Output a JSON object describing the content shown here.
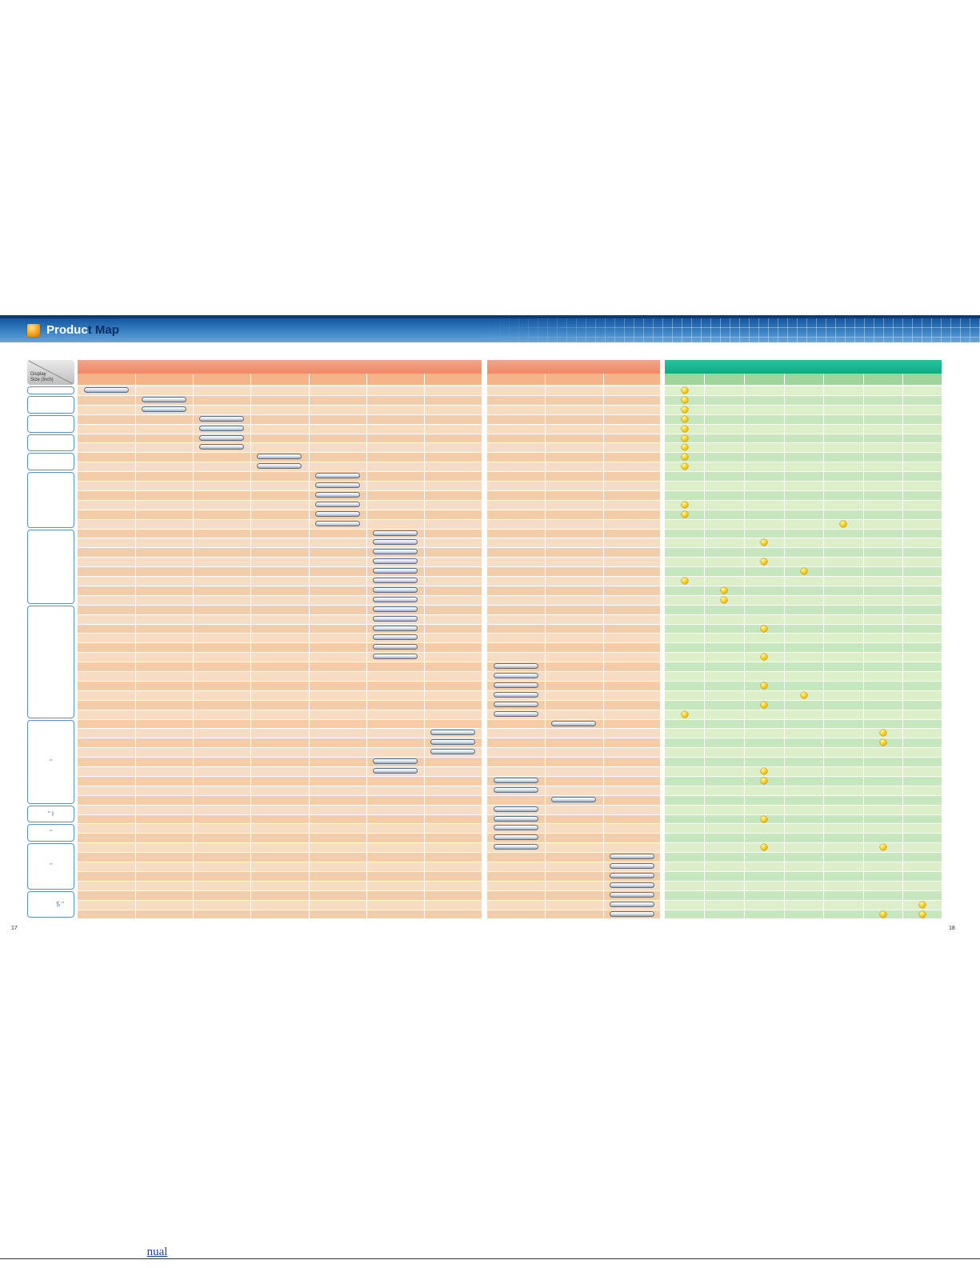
{
  "header": {
    "title_part1": "Produc",
    "title_part2": "t Map"
  },
  "table": {
    "corner_line1": "Display",
    "corner_line2": "Size (Inch)",
    "size_boxes": [
      {
        "rows": [
          0,
          0
        ],
        "text": ""
      },
      {
        "rows": [
          1,
          2
        ],
        "text": ""
      },
      {
        "rows": [
          3,
          4
        ],
        "text": ""
      },
      {
        "rows": [
          5,
          6
        ],
        "text": ""
      },
      {
        "rows": [
          7,
          8
        ],
        "text": ""
      },
      {
        "rows": [
          9,
          14
        ],
        "text": ""
      },
      {
        "rows": [
          15,
          22
        ],
        "text": ""
      },
      {
        "rows": [
          23,
          34
        ],
        "text": ""
      },
      {
        "rows": [
          35,
          43
        ],
        "text": "\""
      },
      {
        "rows": [
          44,
          45
        ],
        "text": "\"  I"
      },
      {
        "rows": [
          46,
          47
        ],
        "text": "\""
      },
      {
        "rows": [
          48,
          52
        ],
        "text": "\""
      },
      {
        "rows": [
          53,
          55
        ],
        "text": "5  \""
      }
    ],
    "row_count": 56,
    "pills": [
      [
        0,
        0
      ],
      [
        1,
        1
      ],
      [
        2,
        1
      ],
      [
        3,
        2
      ],
      [
        4,
        2
      ],
      [
        5,
        2
      ],
      [
        6,
        2
      ],
      [
        7,
        3
      ],
      [
        8,
        3
      ],
      [
        9,
        4
      ],
      [
        10,
        4
      ],
      [
        11,
        4
      ],
      [
        12,
        4
      ],
      [
        13,
        4
      ],
      [
        14,
        4
      ],
      [
        15,
        5
      ],
      [
        16,
        5
      ],
      [
        17,
        5
      ],
      [
        18,
        5
      ],
      [
        19,
        5
      ],
      [
        20,
        5
      ],
      [
        21,
        5
      ],
      [
        22,
        5
      ],
      [
        23,
        5
      ],
      [
        24,
        5
      ],
      [
        25,
        5
      ],
      [
        26,
        5
      ],
      [
        27,
        5
      ],
      [
        28,
        5
      ],
      [
        29,
        7
      ],
      [
        30,
        7
      ],
      [
        31,
        7
      ],
      [
        32,
        7
      ],
      [
        33,
        7
      ],
      [
        34,
        7
      ],
      [
        35,
        8
      ],
      [
        36,
        6
      ],
      [
        37,
        6
      ],
      [
        38,
        6
      ],
      [
        39,
        5
      ],
      [
        40,
        5
      ],
      [
        41,
        7
      ],
      [
        42,
        7
      ],
      [
        43,
        8
      ],
      [
        44,
        7
      ],
      [
        45,
        7
      ],
      [
        46,
        7
      ],
      [
        47,
        7
      ],
      [
        48,
        7
      ],
      [
        49,
        9
      ],
      [
        50,
        9
      ],
      [
        51,
        9
      ],
      [
        52,
        9
      ],
      [
        53,
        9
      ],
      [
        54,
        9
      ],
      [
        55,
        9
      ]
    ],
    "dots": [
      [
        0,
        0
      ],
      [
        1,
        0
      ],
      [
        2,
        0
      ],
      [
        3,
        0
      ],
      [
        4,
        0
      ],
      [
        5,
        0
      ],
      [
        6,
        0
      ],
      [
        7,
        0
      ],
      [
        8,
        0
      ],
      [
        12,
        0
      ],
      [
        13,
        0
      ],
      [
        14,
        4
      ],
      [
        16,
        2
      ],
      [
        18,
        2
      ],
      [
        19,
        3
      ],
      [
        20,
        0
      ],
      [
        21,
        1
      ],
      [
        22,
        1
      ],
      [
        25,
        2
      ],
      [
        28,
        2
      ],
      [
        31,
        2
      ],
      [
        32,
        3
      ],
      [
        33,
        2
      ],
      [
        34,
        0
      ],
      [
        36,
        5
      ],
      [
        37,
        5
      ],
      [
        40,
        2
      ],
      [
        41,
        2
      ],
      [
        45,
        2
      ],
      [
        48,
        2
      ],
      [
        48,
        5
      ],
      [
        54,
        6
      ],
      [
        55,
        5
      ],
      [
        55,
        6
      ]
    ]
  },
  "page_left": "17",
  "page_right": "18",
  "footer": {
    "link_text": "nual"
  },
  "colors": {
    "lcd_header": "#ef8866",
    "green_header": "#12a986",
    "banner_blue": "#1b5ea6",
    "dot_yellow": "#ffd21c"
  }
}
